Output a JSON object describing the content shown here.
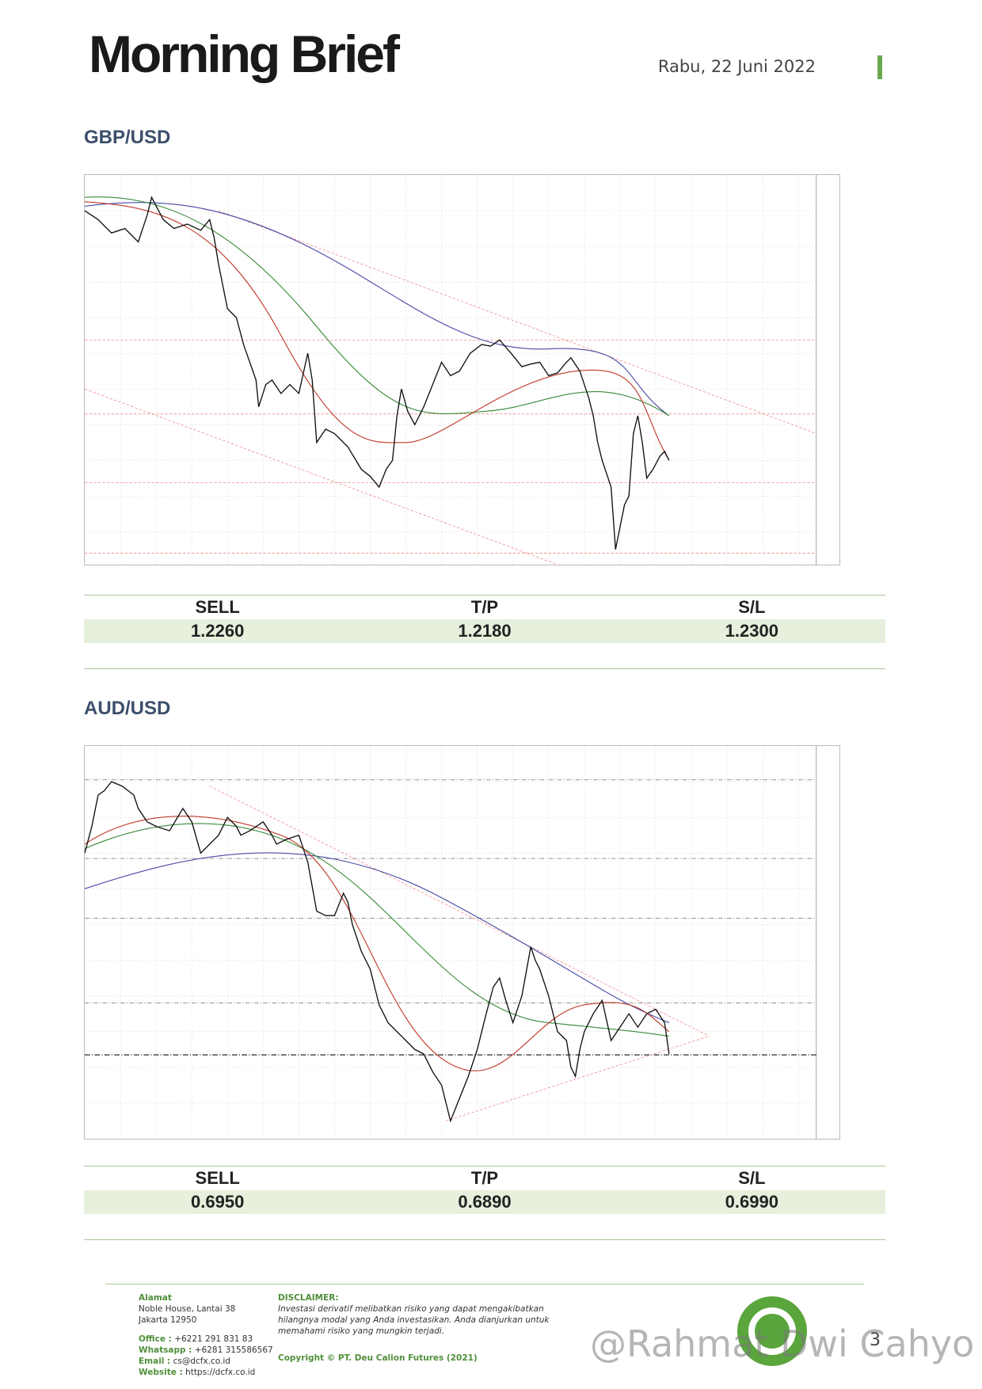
{
  "header": {
    "title": "Morning Brief",
    "date": "Rabu, 22 Juni 2022"
  },
  "sections": [
    {
      "pair": "GBP/USD",
      "table": {
        "headers": [
          "SELL",
          "T/P",
          "S/L"
        ],
        "values": [
          "1.2260",
          "1.2180",
          "1.2300"
        ]
      }
    },
    {
      "pair": "AUD/USD",
      "table": {
        "headers": [
          "SELL",
          "T/P",
          "S/L"
        ],
        "values": [
          "0.6950",
          "0.6890",
          "0.6990"
        ]
      }
    }
  ],
  "footer": {
    "address": {
      "label": "Alamat",
      "lines": [
        "Noble House, Lantai 38",
        "Jakarta 12950"
      ]
    },
    "contacts": [
      {
        "label": "Office :",
        "value": "+6221 291 831 83"
      },
      {
        "label": "Whatsapp :",
        "value": "+6281 315586567"
      },
      {
        "label": "Email :",
        "value": "cs@dcfx.co.id"
      },
      {
        "label": "Website :",
        "value": "https://dcfx.co.id"
      }
    ],
    "disclaimer": {
      "title": "DISCLAIMER:",
      "lines": [
        "Investasi derivatif melibatkan risiko yang dapat mengakibatkan",
        "hilangnya modal yang Anda investasikan. Anda dianjurkan untuk",
        "memahami risiko yang mungkin terjadi."
      ]
    },
    "copyright": "Copyright © PT. Deu Calion Futures (2021)",
    "page": "3"
  },
  "watermark": "@Rahmat Dwi Cahyo"
}
